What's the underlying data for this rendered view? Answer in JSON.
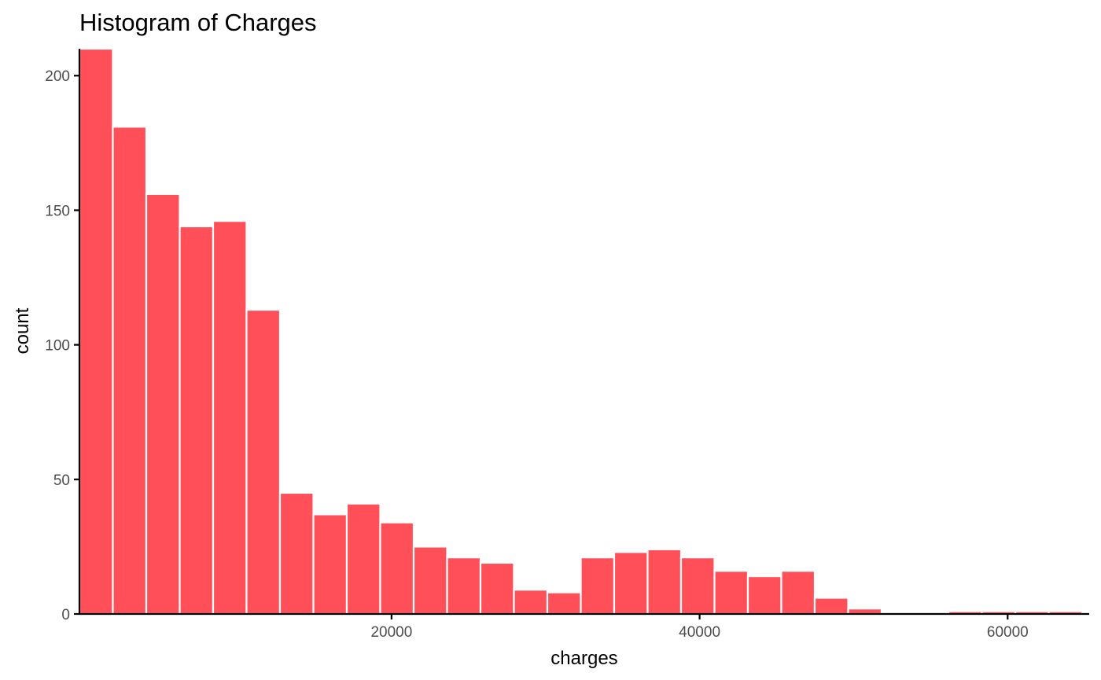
{
  "chart_data": {
    "type": "bar",
    "title": "Histogram of Charges",
    "xlabel": "charges",
    "ylabel": "count",
    "bar_color": "#FF5059",
    "bar_outline": "#FFFFFF",
    "bin_width": 2170,
    "bins_start": -265,
    "xlim": [
      -265,
      65295
    ],
    "ylim": [
      0,
      210
    ],
    "x_ticks": [
      20000,
      40000,
      60000
    ],
    "y_ticks": [
      0,
      50,
      100,
      150,
      200
    ],
    "counts": [
      210,
      181,
      156,
      144,
      146,
      113,
      45,
      37,
      41,
      34,
      25,
      21,
      19,
      9,
      8,
      21,
      23,
      24,
      21,
      16,
      14,
      16,
      6,
      2,
      0,
      0,
      1,
      1,
      1,
      1
    ],
    "grid": false,
    "legend": "none"
  }
}
